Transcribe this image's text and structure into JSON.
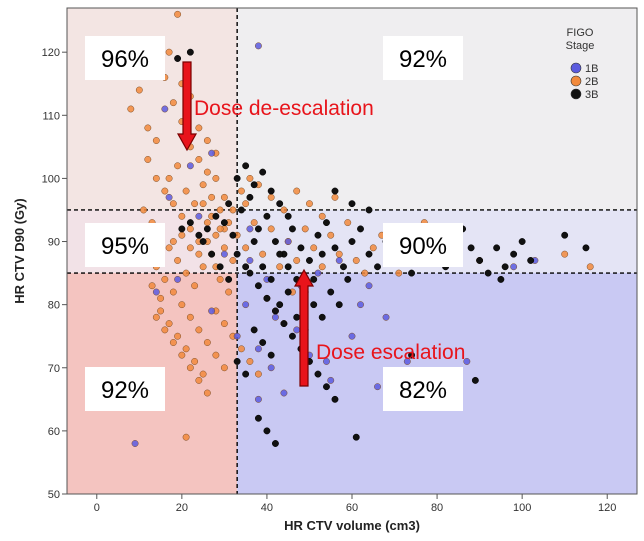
{
  "chart_data": {
    "type": "scatter",
    "xlabel": "HR CTV volume (cm3)",
    "ylabel": "HR CTV D90 (Gy)",
    "xlim": [
      -7,
      127
    ],
    "ylim": [
      50,
      127
    ],
    "x_ticks": [
      0,
      20,
      40,
      60,
      80,
      100,
      120
    ],
    "y_ticks": [
      50,
      60,
      70,
      80,
      90,
      100,
      110,
      120
    ],
    "grid": false,
    "thresholds": {
      "x": 33,
      "y_lower": 85,
      "y_upper": 95
    },
    "regions": [
      {
        "label": "96%",
        "x_range": [
          -7,
          33
        ],
        "y_range": [
          95,
          127
        ],
        "color": "#f3e5e3"
      },
      {
        "label": "92%",
        "x_range": [
          33,
          127
        ],
        "y_range": [
          95,
          127
        ],
        "color": "#efeef0"
      },
      {
        "label": "95%",
        "x_range": [
          -7,
          33
        ],
        "y_range": [
          85,
          95
        ],
        "color": "#f2e2e7"
      },
      {
        "label": "90%",
        "x_range": [
          33,
          127
        ],
        "y_range": [
          85,
          95
        ],
        "color": "#e4e4f5"
      },
      {
        "label": "92%",
        "x_range": [
          -7,
          33
        ],
        "y_range": [
          50,
          85
        ],
        "color": "#f4c4c0"
      },
      {
        "label": "82%",
        "x_range": [
          33,
          127
        ],
        "y_range": [
          50,
          85
        ],
        "color": "#c9c9f3"
      }
    ],
    "annotations": [
      {
        "text": "Dose de-escalation",
        "arrow_direction": "down"
      },
      {
        "text": "Dose escalation",
        "arrow_direction": "up"
      }
    ],
    "legend": {
      "title_lines": [
        "FIGO",
        "Stage"
      ],
      "position": "top-right"
    },
    "series": [
      {
        "name": "1B",
        "color": "#5b5bdf",
        "points": [
          [
            9,
            58
          ],
          [
            38,
            121
          ],
          [
            17,
            97
          ],
          [
            16,
            111
          ],
          [
            22,
            102
          ],
          [
            27,
            104
          ],
          [
            24,
            94
          ],
          [
            36,
            92
          ],
          [
            45,
            90
          ],
          [
            48,
            83
          ],
          [
            42,
            78
          ],
          [
            38,
            73
          ],
          [
            50,
            72
          ],
          [
            44,
            66
          ],
          [
            38,
            65
          ],
          [
            55,
            68
          ],
          [
            60,
            75
          ],
          [
            68,
            78
          ],
          [
            73,
            71
          ],
          [
            66,
            67
          ],
          [
            76,
            64
          ],
          [
            87,
            71
          ],
          [
            103,
            87
          ],
          [
            98,
            86
          ],
          [
            84,
            88
          ],
          [
            64,
            83
          ],
          [
            57,
            87
          ],
          [
            52,
            85
          ],
          [
            40,
            84
          ],
          [
            35,
            80
          ],
          [
            30,
            88
          ],
          [
            33,
            75
          ],
          [
            47,
            76
          ],
          [
            41,
            70
          ],
          [
            62,
            80
          ],
          [
            54,
            71
          ],
          [
            27,
            79
          ],
          [
            19,
            84
          ],
          [
            14,
            82
          ],
          [
            36,
            87
          ]
        ]
      },
      {
        "name": "2B",
        "color": "#f28a3c",
        "points": [
          [
            19,
            126
          ],
          [
            8,
            111
          ],
          [
            10,
            114
          ],
          [
            12,
            108
          ],
          [
            14,
            106
          ],
          [
            16,
            116
          ],
          [
            18,
            112
          ],
          [
            20,
            109
          ],
          [
            22,
            105
          ],
          [
            24,
            103
          ],
          [
            26,
            101
          ],
          [
            28,
            100
          ],
          [
            30,
            97
          ],
          [
            12,
            103
          ],
          [
            14,
            100
          ],
          [
            16,
            98
          ],
          [
            18,
            96
          ],
          [
            20,
            94
          ],
          [
            22,
            92
          ],
          [
            24,
            90
          ],
          [
            26,
            93
          ],
          [
            28,
            91
          ],
          [
            30,
            89
          ],
          [
            32,
            87
          ],
          [
            11,
            95
          ],
          [
            13,
            93
          ],
          [
            15,
            91
          ],
          [
            17,
            89
          ],
          [
            19,
            87
          ],
          [
            21,
            85
          ],
          [
            23,
            83
          ],
          [
            25,
            86
          ],
          [
            27,
            88
          ],
          [
            29,
            84
          ],
          [
            31,
            82
          ],
          [
            10,
            90
          ],
          [
            12,
            88
          ],
          [
            14,
            86
          ],
          [
            16,
            84
          ],
          [
            18,
            82
          ],
          [
            20,
            80
          ],
          [
            22,
            78
          ],
          [
            24,
            76
          ],
          [
            26,
            74
          ],
          [
            28,
            72
          ],
          [
            30,
            70
          ],
          [
            15,
            79
          ],
          [
            17,
            77
          ],
          [
            19,
            75
          ],
          [
            21,
            73
          ],
          [
            23,
            71
          ],
          [
            25,
            69
          ],
          [
            13,
            83
          ],
          [
            15,
            81
          ],
          [
            17,
            100
          ],
          [
            19,
            102
          ],
          [
            21,
            98
          ],
          [
            23,
            96
          ],
          [
            25,
            99
          ],
          [
            27,
            97
          ],
          [
            29,
            95
          ],
          [
            31,
            93
          ],
          [
            33,
            91
          ],
          [
            35,
            89
          ],
          [
            37,
            93
          ],
          [
            39,
            88
          ],
          [
            41,
            92
          ],
          [
            43,
            86
          ],
          [
            45,
            90
          ],
          [
            47,
            87
          ],
          [
            49,
            92
          ],
          [
            51,
            89
          ],
          [
            53,
            86
          ],
          [
            55,
            91
          ],
          [
            57,
            88
          ],
          [
            59,
            93
          ],
          [
            61,
            87
          ],
          [
            63,
            85
          ],
          [
            65,
            89
          ],
          [
            67,
            91
          ],
          [
            69,
            87
          ],
          [
            71,
            85
          ],
          [
            73,
            89
          ],
          [
            77,
            93
          ],
          [
            82,
            88
          ],
          [
            90,
            87
          ],
          [
            110,
            88
          ],
          [
            116,
            86
          ],
          [
            35,
            96
          ],
          [
            38,
            99
          ],
          [
            41,
            97
          ],
          [
            44,
            95
          ],
          [
            47,
            98
          ],
          [
            50,
            96
          ],
          [
            53,
            94
          ],
          [
            56,
            97
          ],
          [
            21,
            59
          ],
          [
            14,
            78
          ],
          [
            16,
            76
          ],
          [
            18,
            74
          ],
          [
            20,
            72
          ],
          [
            22,
            70
          ],
          [
            24,
            68
          ],
          [
            26,
            66
          ],
          [
            28,
            79
          ],
          [
            30,
            77
          ],
          [
            32,
            75
          ],
          [
            34,
            73
          ],
          [
            36,
            71
          ],
          [
            38,
            69
          ],
          [
            40,
            81
          ],
          [
            42,
            79
          ],
          [
            44,
            77
          ],
          [
            46,
            82
          ],
          [
            18,
            90
          ],
          [
            20,
            91
          ],
          [
            22,
            89
          ],
          [
            24,
            88
          ],
          [
            26,
            90
          ],
          [
            28,
            86
          ],
          [
            30,
            92
          ],
          [
            32,
            95
          ],
          [
            34,
            98
          ],
          [
            36,
            100
          ],
          [
            24,
            108
          ],
          [
            26,
            106
          ],
          [
            28,
            104
          ],
          [
            20,
            115
          ],
          [
            22,
            113
          ],
          [
            15,
            118
          ],
          [
            17,
            120
          ],
          [
            25,
            96
          ],
          [
            27,
            94
          ],
          [
            29,
            92
          ]
        ]
      },
      {
        "name": "3B",
        "color": "#111111",
        "points": [
          [
            19,
            119
          ],
          [
            22,
            120
          ],
          [
            30,
            93
          ],
          [
            32,
            91
          ],
          [
            34,
            95
          ],
          [
            36,
            97
          ],
          [
            38,
            92
          ],
          [
            40,
            94
          ],
          [
            42,
            90
          ],
          [
            44,
            88
          ],
          [
            46,
            92
          ],
          [
            48,
            89
          ],
          [
            50,
            87
          ],
          [
            52,
            91
          ],
          [
            54,
            93
          ],
          [
            56,
            89
          ],
          [
            58,
            86
          ],
          [
            60,
            90
          ],
          [
            62,
            92
          ],
          [
            64,
            88
          ],
          [
            66,
            86
          ],
          [
            68,
            90
          ],
          [
            70,
            92
          ],
          [
            72,
            87
          ],
          [
            74,
            85
          ],
          [
            76,
            89
          ],
          [
            78,
            91
          ],
          [
            80,
            88
          ],
          [
            82,
            86
          ],
          [
            84,
            90
          ],
          [
            86,
            92
          ],
          [
            88,
            89
          ],
          [
            90,
            87
          ],
          [
            92,
            85
          ],
          [
            94,
            89
          ],
          [
            96,
            86
          ],
          [
            98,
            88
          ],
          [
            100,
            90
          ],
          [
            102,
            87
          ],
          [
            110,
            91
          ],
          [
            115,
            89
          ],
          [
            33,
            100
          ],
          [
            35,
            102
          ],
          [
            37,
            99
          ],
          [
            39,
            101
          ],
          [
            41,
            98
          ],
          [
            43,
            96
          ],
          [
            45,
            94
          ],
          [
            56,
            98
          ],
          [
            60,
            96
          ],
          [
            64,
            95
          ],
          [
            36,
            85
          ],
          [
            38,
            83
          ],
          [
            40,
            81
          ],
          [
            42,
            79
          ],
          [
            44,
            77
          ],
          [
            46,
            75
          ],
          [
            48,
            73
          ],
          [
            50,
            71
          ],
          [
            52,
            69
          ],
          [
            54,
            67
          ],
          [
            56,
            65
          ],
          [
            38,
            62
          ],
          [
            40,
            60
          ],
          [
            42,
            58
          ],
          [
            61,
            59
          ],
          [
            69,
            64
          ],
          [
            74,
            72
          ],
          [
            82,
            66
          ],
          [
            89,
            68
          ],
          [
            95,
            84
          ],
          [
            33,
            71
          ],
          [
            35,
            69
          ],
          [
            37,
            76
          ],
          [
            39,
            74
          ],
          [
            41,
            72
          ],
          [
            43,
            80
          ],
          [
            45,
            82
          ],
          [
            47,
            78
          ],
          [
            49,
            76
          ],
          [
            51,
            80
          ],
          [
            53,
            78
          ],
          [
            55,
            82
          ],
          [
            57,
            80
          ],
          [
            59,
            84
          ],
          [
            25,
            90
          ],
          [
            27,
            88
          ],
          [
            29,
            86
          ],
          [
            31,
            84
          ],
          [
            26,
            92
          ],
          [
            28,
            94
          ],
          [
            24,
            91
          ],
          [
            22,
            93
          ],
          [
            20,
            92
          ],
          [
            31,
            96
          ],
          [
            33,
            88
          ],
          [
            35,
            86
          ],
          [
            37,
            90
          ],
          [
            39,
            86
          ],
          [
            41,
            84
          ],
          [
            43,
            88
          ],
          [
            45,
            86
          ],
          [
            47,
            84
          ],
          [
            49,
            82
          ],
          [
            51,
            84
          ],
          [
            53,
            88
          ]
        ]
      }
    ]
  }
}
